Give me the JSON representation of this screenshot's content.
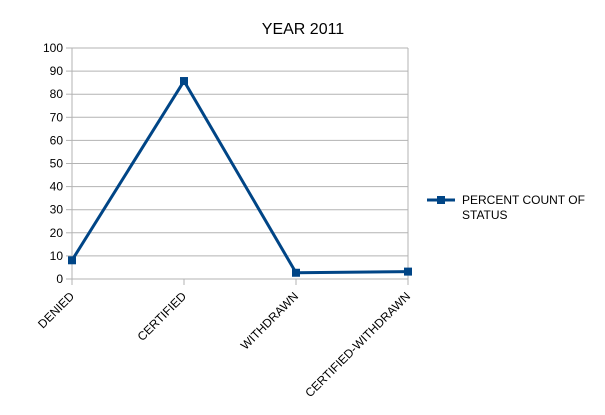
{
  "chart_data": {
    "type": "line",
    "title": "YEAR 2011",
    "xlabel": "",
    "ylabel": "",
    "categories": [
      "DENIED",
      "CERTIFIED",
      "WITHDRAWN",
      "CERTIFIED-WITHDRAWN"
    ],
    "series": [
      {
        "name": "PERCENT COUNT OF STATUS",
        "values": [
          8.1,
          85.7,
          2.7,
          3.2
        ],
        "color": "#004586"
      }
    ],
    "ylim": [
      0,
      100
    ],
    "yticks": [
      0,
      10,
      20,
      30,
      40,
      50,
      60,
      70,
      80,
      90,
      100
    ],
    "grid": true,
    "legend_position": "right",
    "marker": "square"
  }
}
